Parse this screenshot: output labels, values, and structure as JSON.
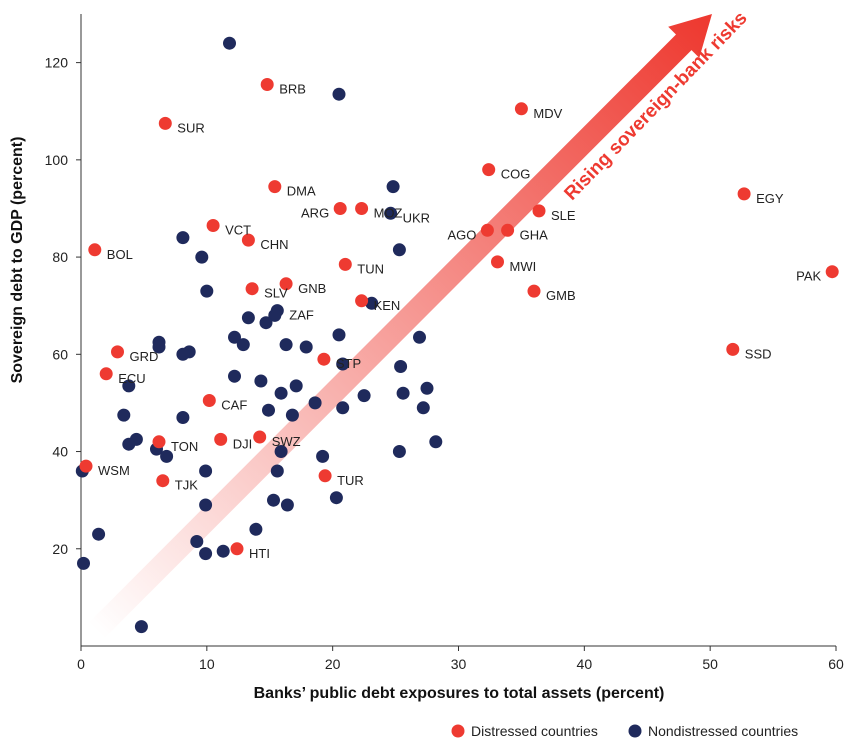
{
  "chart_data": {
    "type": "scatter",
    "xlabel": "Banks’ public debt exposures to total assets (percent)",
    "ylabel": "Sovereign debt to GDP (percent)",
    "xlim": [
      0,
      60
    ],
    "ylim": [
      0,
      130
    ],
    "x_ticks": [
      0,
      10,
      20,
      30,
      40,
      50,
      60
    ],
    "y_ticks": [
      20,
      40,
      60,
      80,
      100,
      120
    ],
    "annotation": "Rising sovereign-bank risks",
    "colors": {
      "distressed": "#ee3a31",
      "nondistressed": "#1f2a5c",
      "arrow": "#ee3a31"
    },
    "legend": {
      "placement": "bottom-right"
    },
    "series": [
      {
        "name": "Distressed countries",
        "points": [
          {
            "label": "BRB",
            "x": 14.8,
            "y": 115.5
          },
          {
            "label": "SUR",
            "x": 6.7,
            "y": 107.5
          },
          {
            "label": "MDV",
            "x": 35.0,
            "y": 110.5
          },
          {
            "label": "COG",
            "x": 32.4,
            "y": 98.0
          },
          {
            "label": "EGY",
            "x": 52.7,
            "y": 93.0
          },
          {
            "label": "DMA",
            "x": 15.4,
            "y": 94.5
          },
          {
            "label": "ARG",
            "x": 20.6,
            "y": 90.0
          },
          {
            "label": "MOZ",
            "x": 22.3,
            "y": 90.0
          },
          {
            "label": "SLE",
            "x": 36.4,
            "y": 89.5
          },
          {
            "label": "VCT",
            "x": 10.5,
            "y": 86.5
          },
          {
            "label": "CHN",
            "x": 13.3,
            "y": 83.5
          },
          {
            "label": "AGO",
            "x": 32.3,
            "y": 85.5
          },
          {
            "label": "GHA",
            "x": 33.9,
            "y": 85.5
          },
          {
            "label": "BOL",
            "x": 1.1,
            "y": 81.5
          },
          {
            "label": "TUN",
            "x": 21.0,
            "y": 78.5
          },
          {
            "label": "MWI",
            "x": 33.1,
            "y": 79.0
          },
          {
            "label": "PAK",
            "x": 59.7,
            "y": 77.0
          },
          {
            "label": "SLV",
            "x": 13.6,
            "y": 73.5
          },
          {
            "label": "GNB",
            "x": 16.3,
            "y": 74.5
          },
          {
            "label": "GMB",
            "x": 36.0,
            "y": 73.0
          },
          {
            "label": "KEN",
            "x": 22.3,
            "y": 71.0
          },
          {
            "label": "SSD",
            "x": 51.8,
            "y": 61.0
          },
          {
            "label": "GRD",
            "x": 2.9,
            "y": 60.5
          },
          {
            "label": "STP",
            "x": 19.3,
            "y": 59.0
          },
          {
            "label": "ECU",
            "x": 2.0,
            "y": 56.0
          },
          {
            "label": "CAF",
            "x": 10.2,
            "y": 50.5
          },
          {
            "label": "SWZ",
            "x": 14.2,
            "y": 43.0
          },
          {
            "label": "DJI",
            "x": 11.1,
            "y": 42.5
          },
          {
            "label": "TON",
            "x": 6.2,
            "y": 42.0
          },
          {
            "label": "WSM",
            "x": 0.4,
            "y": 37.0
          },
          {
            "label": "TUR",
            "x": 19.4,
            "y": 35.0
          },
          {
            "label": "TJK",
            "x": 6.5,
            "y": 34.0
          },
          {
            "label": "HTI",
            "x": 12.4,
            "y": 20.0
          }
        ]
      },
      {
        "name": "Nondistressed countries",
        "points": [
          {
            "label": "",
            "x": 11.8,
            "y": 124.0
          },
          {
            "label": "",
            "x": 20.5,
            "y": 113.5
          },
          {
            "label": "",
            "x": 24.8,
            "y": 94.5
          },
          {
            "label": "UKR",
            "x": 24.6,
            "y": 89.0
          },
          {
            "label": "",
            "x": 8.1,
            "y": 84.0
          },
          {
            "label": "",
            "x": 25.3,
            "y": 81.5
          },
          {
            "label": "",
            "x": 9.6,
            "y": 80.0
          },
          {
            "label": "",
            "x": 10.0,
            "y": 73.0
          },
          {
            "label": "ZAF",
            "x": 15.6,
            "y": 69.0
          },
          {
            "label": "",
            "x": 15.4,
            "y": 68.0
          },
          {
            "label": "",
            "x": 13.3,
            "y": 67.5
          },
          {
            "label": "",
            "x": 14.7,
            "y": 66.5
          },
          {
            "label": "",
            "x": 23.1,
            "y": 70.5
          },
          {
            "label": "",
            "x": 20.5,
            "y": 64.0
          },
          {
            "label": "",
            "x": 26.9,
            "y": 63.5
          },
          {
            "label": "",
            "x": 12.2,
            "y": 63.5
          },
          {
            "label": "",
            "x": 6.2,
            "y": 62.5
          },
          {
            "label": "",
            "x": 6.2,
            "y": 61.5
          },
          {
            "label": "",
            "x": 12.9,
            "y": 62.0
          },
          {
            "label": "",
            "x": 16.3,
            "y": 62.0
          },
          {
            "label": "",
            "x": 17.9,
            "y": 61.5
          },
          {
            "label": "",
            "x": 8.6,
            "y": 60.5
          },
          {
            "label": "",
            "x": 8.1,
            "y": 60.0
          },
          {
            "label": "",
            "x": 20.8,
            "y": 58.0
          },
          {
            "label": "",
            "x": 25.4,
            "y": 57.5
          },
          {
            "label": "",
            "x": 12.2,
            "y": 55.5
          },
          {
            "label": "",
            "x": 14.3,
            "y": 54.5
          },
          {
            "label": "",
            "x": 17.1,
            "y": 53.5
          },
          {
            "label": "",
            "x": 3.8,
            "y": 53.5
          },
          {
            "label": "",
            "x": 27.5,
            "y": 53.0
          },
          {
            "label": "",
            "x": 25.6,
            "y": 52.0
          },
          {
            "label": "",
            "x": 15.9,
            "y": 52.0
          },
          {
            "label": "",
            "x": 22.5,
            "y": 51.5
          },
          {
            "label": "",
            "x": 18.6,
            "y": 50.0
          },
          {
            "label": "",
            "x": 14.9,
            "y": 48.5
          },
          {
            "label": "",
            "x": 20.8,
            "y": 49.0
          },
          {
            "label": "",
            "x": 27.2,
            "y": 49.0
          },
          {
            "label": "",
            "x": 3.4,
            "y": 47.5
          },
          {
            "label": "",
            "x": 8.1,
            "y": 47.0
          },
          {
            "label": "",
            "x": 16.8,
            "y": 47.5
          },
          {
            "label": "",
            "x": 4.4,
            "y": 42.5
          },
          {
            "label": "",
            "x": 3.8,
            "y": 41.5
          },
          {
            "label": "",
            "x": 28.2,
            "y": 42.0
          },
          {
            "label": "",
            "x": 6.0,
            "y": 40.5
          },
          {
            "label": "",
            "x": 15.9,
            "y": 40.0
          },
          {
            "label": "",
            "x": 25.3,
            "y": 40.0
          },
          {
            "label": "",
            "x": 6.8,
            "y": 39.0
          },
          {
            "label": "",
            "x": 19.2,
            "y": 39.0
          },
          {
            "label": "",
            "x": 0.1,
            "y": 36.0
          },
          {
            "label": "",
            "x": 9.9,
            "y": 36.0
          },
          {
            "label": "",
            "x": 15.6,
            "y": 36.0
          },
          {
            "label": "",
            "x": 20.3,
            "y": 30.5
          },
          {
            "label": "",
            "x": 15.3,
            "y": 30.0
          },
          {
            "label": "",
            "x": 9.9,
            "y": 29.0
          },
          {
            "label": "",
            "x": 16.4,
            "y": 29.0
          },
          {
            "label": "",
            "x": 13.9,
            "y": 24.0
          },
          {
            "label": "",
            "x": 1.4,
            "y": 23.0
          },
          {
            "label": "",
            "x": 9.2,
            "y": 21.5
          },
          {
            "label": "",
            "x": 11.3,
            "y": 19.5
          },
          {
            "label": "",
            "x": 9.9,
            "y": 19.0
          },
          {
            "label": "",
            "x": 0.2,
            "y": 17.0
          },
          {
            "label": "",
            "x": 4.8,
            "y": 4.0
          }
        ]
      }
    ]
  }
}
